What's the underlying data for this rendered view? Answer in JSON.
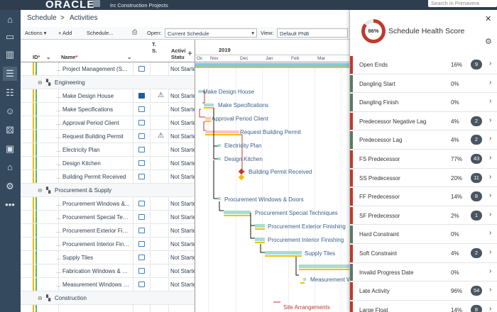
{
  "header": {
    "logo": "ORACLE",
    "project": "Irc Construction Projects",
    "search_placeholder": "Search in Primavera"
  },
  "nav": {
    "icons": [
      "home-icon",
      "monitor-icon",
      "chart-icon",
      "activities-icon",
      "checklist-icon",
      "people-icon",
      "dice-icon",
      "image-icon",
      "bank-icon",
      "gear-icon",
      "more-icon"
    ],
    "active": "activities-icon"
  },
  "breadcrumb": {
    "parent": "Schedule",
    "separator": ">",
    "current": "Activities"
  },
  "toolbar": {
    "actions": "Actions ▾",
    "add": "+ Add",
    "schedule": "Schedule...",
    "open_label": "Open:",
    "open_value": "Current Schedule",
    "view_label": "View:",
    "view_value": "Default PNB"
  },
  "grid": {
    "col_id": "ID",
    "col_name": "Name",
    "col_ts": "T. S.",
    "col_status": "Activi Statu",
    "rows": [
      {
        "type": "task",
        "id": "...",
        "name": "Project Management (Sup...",
        "chat": "outline",
        "warn": false,
        "status": "Not Starte"
      },
      {
        "type": "group",
        "name": "Engineering"
      },
      {
        "type": "task",
        "id": "...",
        "name": "Make Design House",
        "chat": "filled",
        "warn": true,
        "status": "Not Starte"
      },
      {
        "type": "task",
        "id": "...",
        "name": "Make Specifications",
        "chat": "outline",
        "warn": false,
        "status": "Not Starte"
      },
      {
        "type": "task",
        "id": "...",
        "name": "Approval Period Client",
        "chat": "outline",
        "warn": false,
        "status": "Not Starte"
      },
      {
        "type": "task",
        "id": "...",
        "name": "Request Building Permit",
        "chat": "outline",
        "warn": true,
        "status": "Not Starte"
      },
      {
        "type": "task",
        "id": "...",
        "name": "Electricity Plan",
        "chat": "outline",
        "warn": false,
        "status": "Not Starte"
      },
      {
        "type": "task",
        "id": "...",
        "name": "Design Kitchen",
        "chat": "outline",
        "warn": false,
        "status": "Not Starte"
      },
      {
        "type": "task",
        "id": "...",
        "name": "Building Permit Received",
        "chat": "outline",
        "warn": false,
        "status": "Not Starte"
      },
      {
        "type": "group",
        "name": "Procurement & Supply"
      },
      {
        "type": "task",
        "id": "...",
        "name": "Procurement Windows &...",
        "chat": "outline",
        "warn": false,
        "status": "Not Starte"
      },
      {
        "type": "task",
        "id": "...",
        "name": "Procurement Special Tech...",
        "chat": "outline",
        "warn": false,
        "status": "Not Starte"
      },
      {
        "type": "task",
        "id": "...",
        "name": "Procurement Exterior Finis...",
        "chat": "outline",
        "warn": false,
        "status": "Not Starte"
      },
      {
        "type": "task",
        "id": "...",
        "name": "Procurement Interior Finis...",
        "chat": "outline",
        "warn": false,
        "status": "Not Starte"
      },
      {
        "type": "task",
        "id": "...",
        "name": "Supply Tiles",
        "chat": "outline",
        "warn": false,
        "status": "Not Starte"
      },
      {
        "type": "task",
        "id": "...",
        "name": "Fabrication Windows & D...",
        "chat": "outline",
        "warn": false,
        "status": "Not Starte"
      },
      {
        "type": "task",
        "id": "...",
        "name": "Measurement Windows &...",
        "chat": "outline",
        "warn": false,
        "status": "Not Starte"
      },
      {
        "type": "group",
        "name": "Construction"
      }
    ]
  },
  "gantt": {
    "year": "2019",
    "months": [
      "Oc",
      "Nov",
      "Dec",
      "Jan",
      "Feb",
      "Mar"
    ],
    "labels": [
      "Make Design House",
      "Make Specifications",
      "Approval Period Client",
      "Request Building Permit",
      "Electricity Plan",
      "Design Kitchen",
      "Building Permit Received",
      "Procurement Windows & Doors",
      "Procurement Special Techniques",
      "Procurement Exterior Finishing",
      "Procurement Interior Finishing",
      "Supply Tiles",
      "Measurement W",
      "Site Arrangements"
    ]
  },
  "panel": {
    "score": "86%",
    "score_value": 86,
    "title": "Schedule Health Score",
    "colors": {
      "fail": "#c0392b",
      "pass": "#5a7a62"
    },
    "metrics": [
      {
        "name": "Open Ends",
        "pct": "16%",
        "count": "9",
        "state": "fail"
      },
      {
        "name": "Dangling Start",
        "pct": "0%",
        "count": "",
        "state": "pass"
      },
      {
        "name": "Dangling Finish",
        "pct": "0%",
        "count": "",
        "state": "pass"
      },
      {
        "name": "Predecessor Negative Lag",
        "pct": "4%",
        "count": "2",
        "state": "fail"
      },
      {
        "name": "Predecessor Lag",
        "pct": "4%",
        "count": "2",
        "state": "pass"
      },
      {
        "name": "FS Predecessor",
        "pct": "77%",
        "count": "43",
        "state": "fail"
      },
      {
        "name": "SS Predecessor",
        "pct": "20%",
        "count": "11",
        "state": "fail"
      },
      {
        "name": "FF Predecessor",
        "pct": "14%",
        "count": "8",
        "state": "fail"
      },
      {
        "name": "SF Predecessor",
        "pct": "2%",
        "count": "1",
        "state": "fail"
      },
      {
        "name": "Hard Constraint",
        "pct": "0%",
        "count": "",
        "state": "pass"
      },
      {
        "name": "Soft Constraint",
        "pct": "4%",
        "count": "2",
        "state": "fail"
      },
      {
        "name": "Invalid Progress Date",
        "pct": "0%",
        "count": "",
        "state": "pass"
      },
      {
        "name": "Late Activity",
        "pct": "96%",
        "count": "54",
        "state": "fail"
      },
      {
        "name": "Large Float",
        "pct": "14%",
        "count": "8",
        "state": "fail"
      }
    ]
  }
}
